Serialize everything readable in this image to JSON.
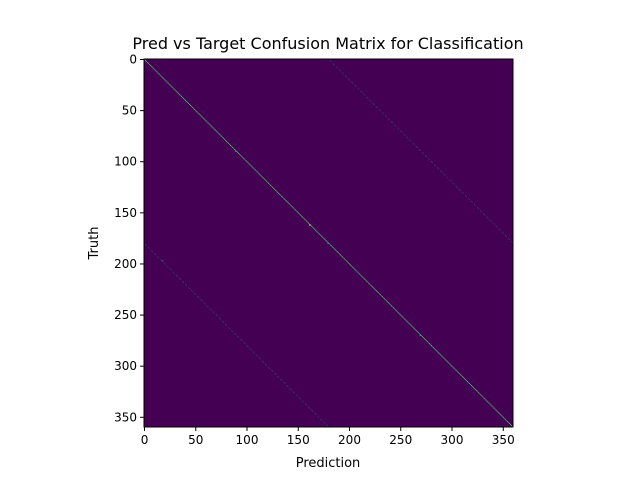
{
  "chart_data": {
    "type": "heatmap",
    "title": "Pred vs Target Confusion Matrix for Classification",
    "xlabel": "Prediction",
    "ylabel": "Truth",
    "n_classes": 360,
    "xlim": [
      0,
      360
    ],
    "ylim": [
      360,
      0
    ],
    "x_ticks": [
      0,
      50,
      100,
      150,
      200,
      250,
      300,
      350
    ],
    "y_ticks": [
      0,
      50,
      100,
      150,
      200,
      250,
      300,
      350
    ],
    "colormap": "viridis",
    "background_color": "#440154",
    "grid": false,
    "structure": {
      "main_diagonal": {
        "offset": 0,
        "intensity": 0.75
      },
      "secondary_diagonals": [
        {
          "offset": 180,
          "intensity": 0.18
        },
        {
          "offset": -180,
          "intensity": 0.18
        }
      ],
      "highlight_cells": [
        {
          "truth": 90,
          "prediction": 90,
          "intensity": 0.55
        },
        {
          "truth": 180,
          "prediction": 180,
          "intensity": 0.55
        },
        {
          "truth": 270,
          "prediction": 270,
          "intensity": 0.55
        },
        {
          "truth": 162,
          "prediction": 162,
          "intensity": 0.9
        },
        {
          "truth": 197,
          "prediction": 18,
          "intensity": 0.35
        }
      ]
    }
  }
}
